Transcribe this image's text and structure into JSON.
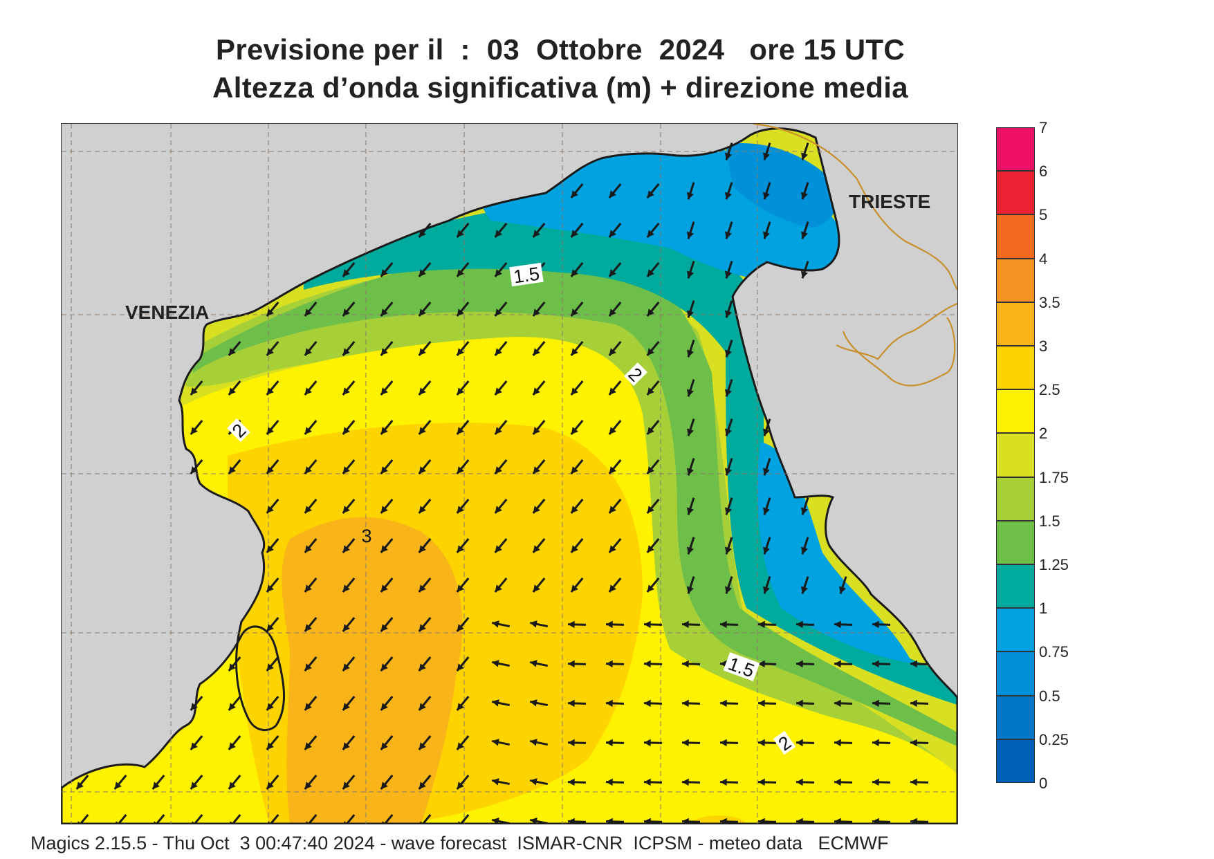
{
  "title": {
    "line1": "Previsione per il  :  03  Ottobre  2024   ore 15 UTC",
    "line2": "Altezza d’onda significativa (m) + direzione media"
  },
  "map": {
    "places": [
      {
        "name": "VENEZIA"
      },
      {
        "name": "TRIESTE"
      }
    ],
    "contour_labels": [
      "1.5",
      "2",
      "2",
      "3",
      "1.5",
      "2"
    ],
    "colors": {
      "land": "#d0d0d0",
      "coast": "#1a1a1a",
      "border": "#c8902a",
      "arrow": "#1a1a1a"
    },
    "wave_direction": "from north-east towards south-west; from east in the southern part"
  },
  "legend": {
    "levels": [
      {
        "label": "7",
        "color": "#ee1166"
      },
      {
        "label": "6",
        "color": "#ee2233"
      },
      {
        "label": "5",
        "color": "#f26a22"
      },
      {
        "label": "4",
        "color": "#f59422"
      },
      {
        "label": "3.5",
        "color": "#f8b419"
      },
      {
        "label": "3",
        "color": "#fdd400"
      },
      {
        "label": "2.5",
        "color": "#fff200"
      },
      {
        "label": "2",
        "color": "#d9e021"
      },
      {
        "label": "1.75",
        "color": "#a6cf38"
      },
      {
        "label": "1.5",
        "color": "#6ebe4a"
      },
      {
        "label": "1.25",
        "color": "#00aa9c"
      },
      {
        "label": "1",
        "color": "#00a3e0"
      },
      {
        "label": "0.75",
        "color": "#0091d8"
      },
      {
        "label": "0.5",
        "color": "#0078c8"
      },
      {
        "label": "0.25",
        "color": "#005eb8"
      },
      {
        "label": "0",
        "color": ""
      }
    ]
  },
  "footer": "Magics 2.15.5 - Thu Oct  3 00:47:40 2024 - wave forecast  ISMAR-CNR  ICPSM - meteo data   ECMWF"
}
